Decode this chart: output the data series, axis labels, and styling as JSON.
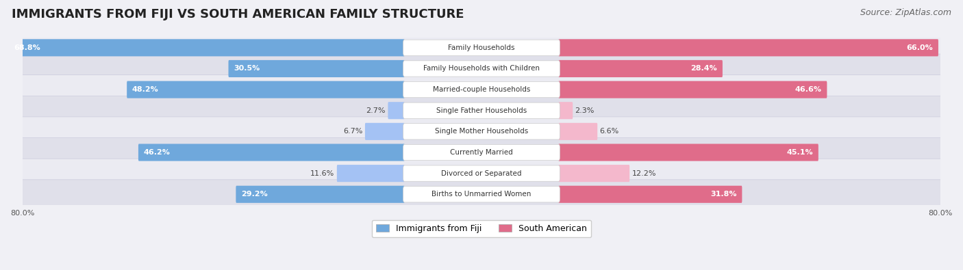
{
  "title": "IMMIGRANTS FROM FIJI VS SOUTH AMERICAN FAMILY STRUCTURE",
  "source": "Source: ZipAtlas.com",
  "categories": [
    "Family Households",
    "Family Households with Children",
    "Married-couple Households",
    "Single Father Households",
    "Single Mother Households",
    "Currently Married",
    "Divorced or Separated",
    "Births to Unmarried Women"
  ],
  "fiji_values": [
    68.8,
    30.5,
    48.2,
    2.7,
    6.7,
    46.2,
    11.6,
    29.2
  ],
  "south_american_values": [
    66.0,
    28.4,
    46.6,
    2.3,
    6.6,
    45.1,
    12.2,
    31.8
  ],
  "fiji_color_large": "#6fa8dc",
  "fiji_color_small": "#a4c2f4",
  "south_american_color_large": "#e06c8a",
  "south_american_color_small": "#f4b8cc",
  "max_value": 80.0,
  "background_color": "#f0f0f5",
  "row_bg_light": "#ebebf2",
  "row_bg_dark": "#e0e0ea",
  "title_fontsize": 13,
  "source_fontsize": 9,
  "label_fontsize": 7.5,
  "value_fontsize": 8,
  "legend_fontsize": 9,
  "axis_label_fontsize": 8,
  "large_threshold": 15
}
